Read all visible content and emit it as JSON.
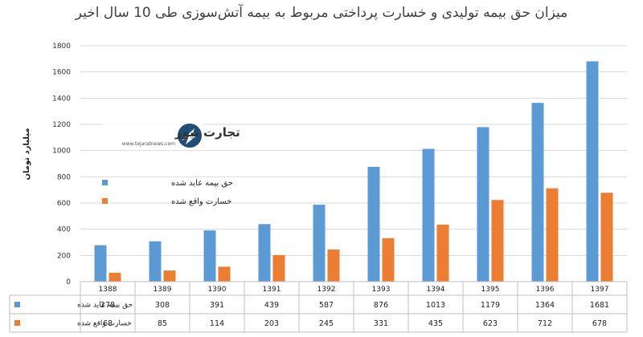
{
  "chart_data": {
    "type": "bar",
    "title": "میزان حق بیمه تولیدی و خسارت پرداختی مربوط به بیمه آتش‌سوزی طی 10 سال اخیر",
    "ylabel": "میلیارد تومان",
    "xlabel": "",
    "ylim": [
      0,
      1800
    ],
    "yticks": [
      0,
      200,
      400,
      600,
      800,
      1000,
      1200,
      1400,
      1600,
      1800
    ],
    "categories": [
      "1388",
      "1389",
      "1390",
      "1391",
      "1392",
      "1393",
      "1394",
      "1395",
      "1396",
      "1397"
    ],
    "series": [
      {
        "name": "حق بیمه عاید شده",
        "color": "#5b9bd5",
        "values": [
          278,
          308,
          391,
          439,
          587,
          876,
          1013,
          1179,
          1364,
          1681
        ]
      },
      {
        "name": "خسارت واقع شده",
        "color": "#ed7d31",
        "values": [
          68,
          85,
          114,
          203,
          245,
          331,
          435,
          623,
          712,
          678
        ]
      }
    ],
    "grid": true,
    "legend": "left",
    "data_table": true
  },
  "watermark": {
    "brand_text": "تجارت نیوز",
    "url_text": "www.tejaratnews.com",
    "icon": "tejaratnews-logo-icon"
  }
}
